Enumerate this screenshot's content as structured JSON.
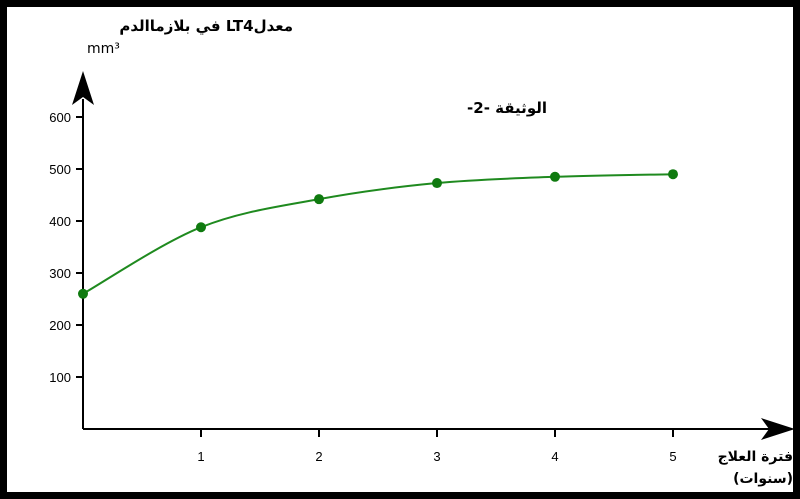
{
  "chart_data": {
    "type": "line",
    "title": "الوثيقة -2-",
    "ylabel": "معدلLT4 في بلازماالدم",
    "yunit": "mm³",
    "xlabel": "فترة العلاج",
    "xunit": "(سنوات)",
    "xlim": [
      0,
      5
    ],
    "ylim": [
      0,
      600
    ],
    "xticks": [
      1,
      2,
      3,
      4,
      5
    ],
    "yticks": [
      100,
      200,
      300,
      400,
      500,
      600
    ],
    "grid": false,
    "legend": "none",
    "colors": {
      "line": "#1f8a1f",
      "marker": "#0f7a0f",
      "axis": "#000000",
      "frame": "#000000"
    },
    "series": [
      {
        "x": [
          0,
          1,
          2,
          3,
          4,
          5
        ],
        "y": [
          260,
          388,
          442,
          473,
          485,
          490
        ]
      }
    ]
  }
}
